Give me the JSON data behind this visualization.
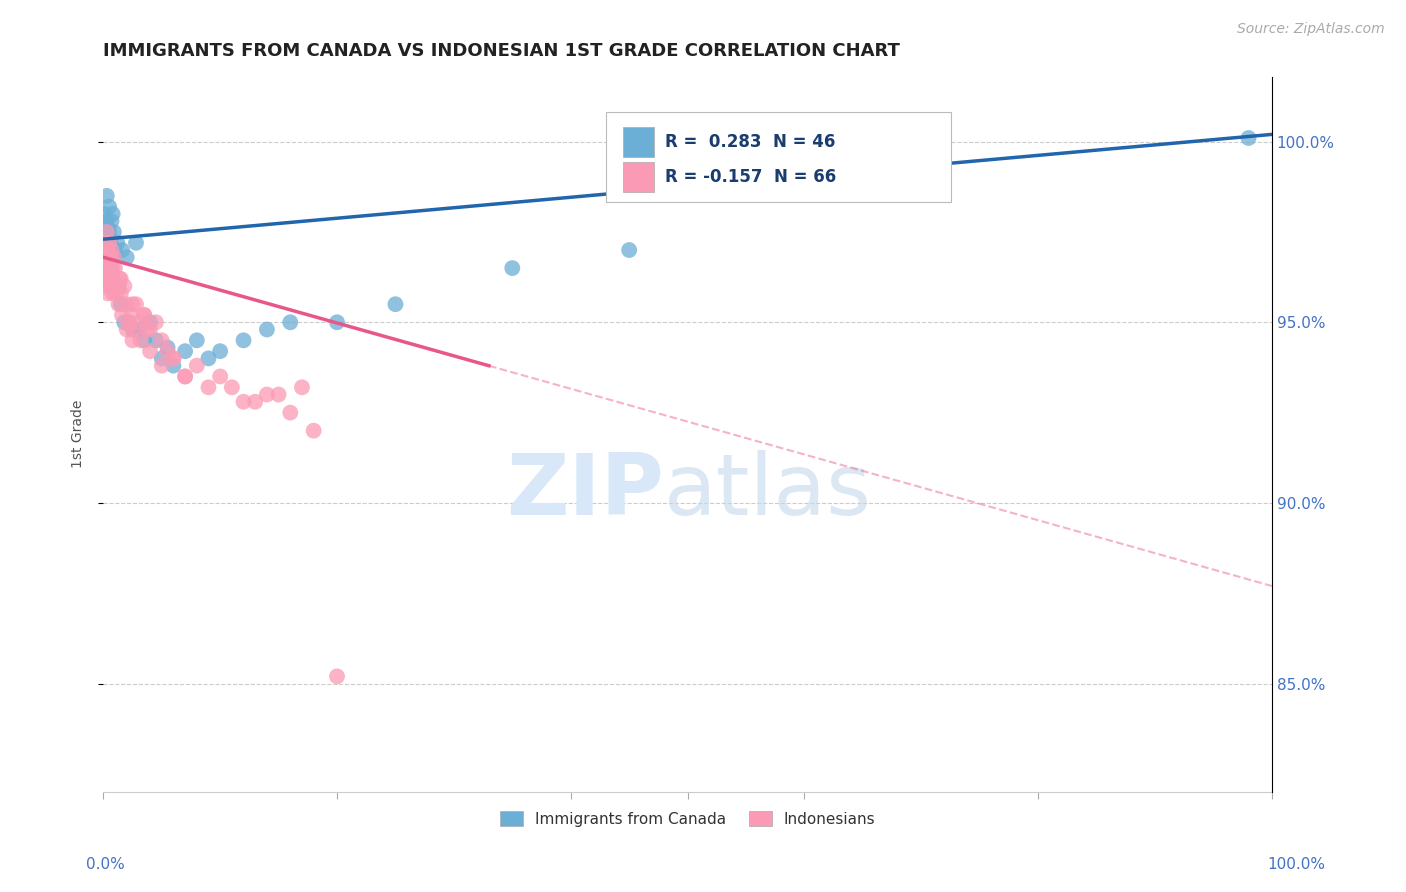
{
  "title": "IMMIGRANTS FROM CANADA VS INDONESIAN 1ST GRADE CORRELATION CHART",
  "source": "Source: ZipAtlas.com",
  "ylabel": "1st Grade",
  "y_ticks": [
    0.85,
    0.9,
    0.95,
    1.0
  ],
  "y_tick_labels": [
    "85.0%",
    "90.0%",
    "95.0%",
    "100.0%"
  ],
  "x_range": [
    0.0,
    1.0
  ],
  "y_range": [
    0.82,
    1.018
  ],
  "legend_canada_R": "R =  0.283",
  "legend_canada_N": "N = 46",
  "legend_indonesia_R": "R = -0.157",
  "legend_indonesia_N": "N = 66",
  "canada_color": "#6baed6",
  "indonesia_color": "#fb9ab4",
  "canada_line_color": "#2166ac",
  "indonesia_line_color": "#e8578a",
  "canada_scatter_x": [
    0.001,
    0.002,
    0.002,
    0.003,
    0.003,
    0.004,
    0.004,
    0.005,
    0.005,
    0.005,
    0.006,
    0.006,
    0.007,
    0.008,
    0.008,
    0.009,
    0.01,
    0.01,
    0.012,
    0.013,
    0.015,
    0.016,
    0.018,
    0.02,
    0.022,
    0.025,
    0.028,
    0.03,
    0.035,
    0.04,
    0.045,
    0.05,
    0.055,
    0.06,
    0.07,
    0.08,
    0.09,
    0.1,
    0.12,
    0.14,
    0.16,
    0.2,
    0.25,
    0.35,
    0.45,
    0.98
  ],
  "canada_scatter_y": [
    0.98,
    0.975,
    0.972,
    0.985,
    0.978,
    0.97,
    0.976,
    0.968,
    0.982,
    0.975,
    0.972,
    0.965,
    0.978,
    0.968,
    0.98,
    0.975,
    0.96,
    0.97,
    0.972,
    0.96,
    0.955,
    0.97,
    0.95,
    0.968,
    0.95,
    0.948,
    0.972,
    0.948,
    0.945,
    0.95,
    0.945,
    0.94,
    0.943,
    0.938,
    0.942,
    0.945,
    0.94,
    0.942,
    0.945,
    0.948,
    0.95,
    0.95,
    0.955,
    0.965,
    0.97,
    1.001
  ],
  "indonesia_scatter_x": [
    0.001,
    0.001,
    0.002,
    0.002,
    0.002,
    0.003,
    0.003,
    0.003,
    0.004,
    0.004,
    0.004,
    0.005,
    0.005,
    0.005,
    0.006,
    0.006,
    0.007,
    0.007,
    0.008,
    0.008,
    0.009,
    0.009,
    0.01,
    0.011,
    0.012,
    0.013,
    0.014,
    0.015,
    0.016,
    0.018,
    0.02,
    0.022,
    0.024,
    0.026,
    0.028,
    0.03,
    0.032,
    0.035,
    0.038,
    0.04,
    0.045,
    0.05,
    0.06,
    0.07,
    0.08,
    0.09,
    0.1,
    0.12,
    0.14,
    0.16,
    0.18,
    0.02,
    0.025,
    0.11,
    0.13,
    0.05,
    0.07,
    0.015,
    0.025,
    0.04,
    0.06,
    0.15,
    0.035,
    0.055,
    0.17,
    0.2
  ],
  "indonesia_scatter_y": [
    0.972,
    0.968,
    0.97,
    0.965,
    0.96,
    0.975,
    0.968,
    0.962,
    0.97,
    0.965,
    0.958,
    0.972,
    0.965,
    0.96,
    0.968,
    0.962,
    0.97,
    0.963,
    0.965,
    0.958,
    0.968,
    0.96,
    0.965,
    0.958,
    0.96,
    0.955,
    0.962,
    0.958,
    0.952,
    0.96,
    0.955,
    0.95,
    0.952,
    0.948,
    0.955,
    0.95,
    0.945,
    0.952,
    0.948,
    0.942,
    0.95,
    0.945,
    0.94,
    0.935,
    0.938,
    0.932,
    0.935,
    0.928,
    0.93,
    0.925,
    0.92,
    0.948,
    0.945,
    0.932,
    0.928,
    0.938,
    0.935,
    0.962,
    0.955,
    0.948,
    0.94,
    0.93,
    0.952,
    0.942,
    0.932,
    0.852
  ],
  "canada_trend_x": [
    0.0,
    1.0
  ],
  "canada_trend_y": [
    0.973,
    1.002
  ],
  "indonesia_trend_x0": 0.0,
  "indonesia_trend_x_solid_end": 0.33,
  "indonesia_trend_x1": 1.0,
  "indonesia_trend_y0": 0.968,
  "indonesia_trend_y1": 0.877
}
